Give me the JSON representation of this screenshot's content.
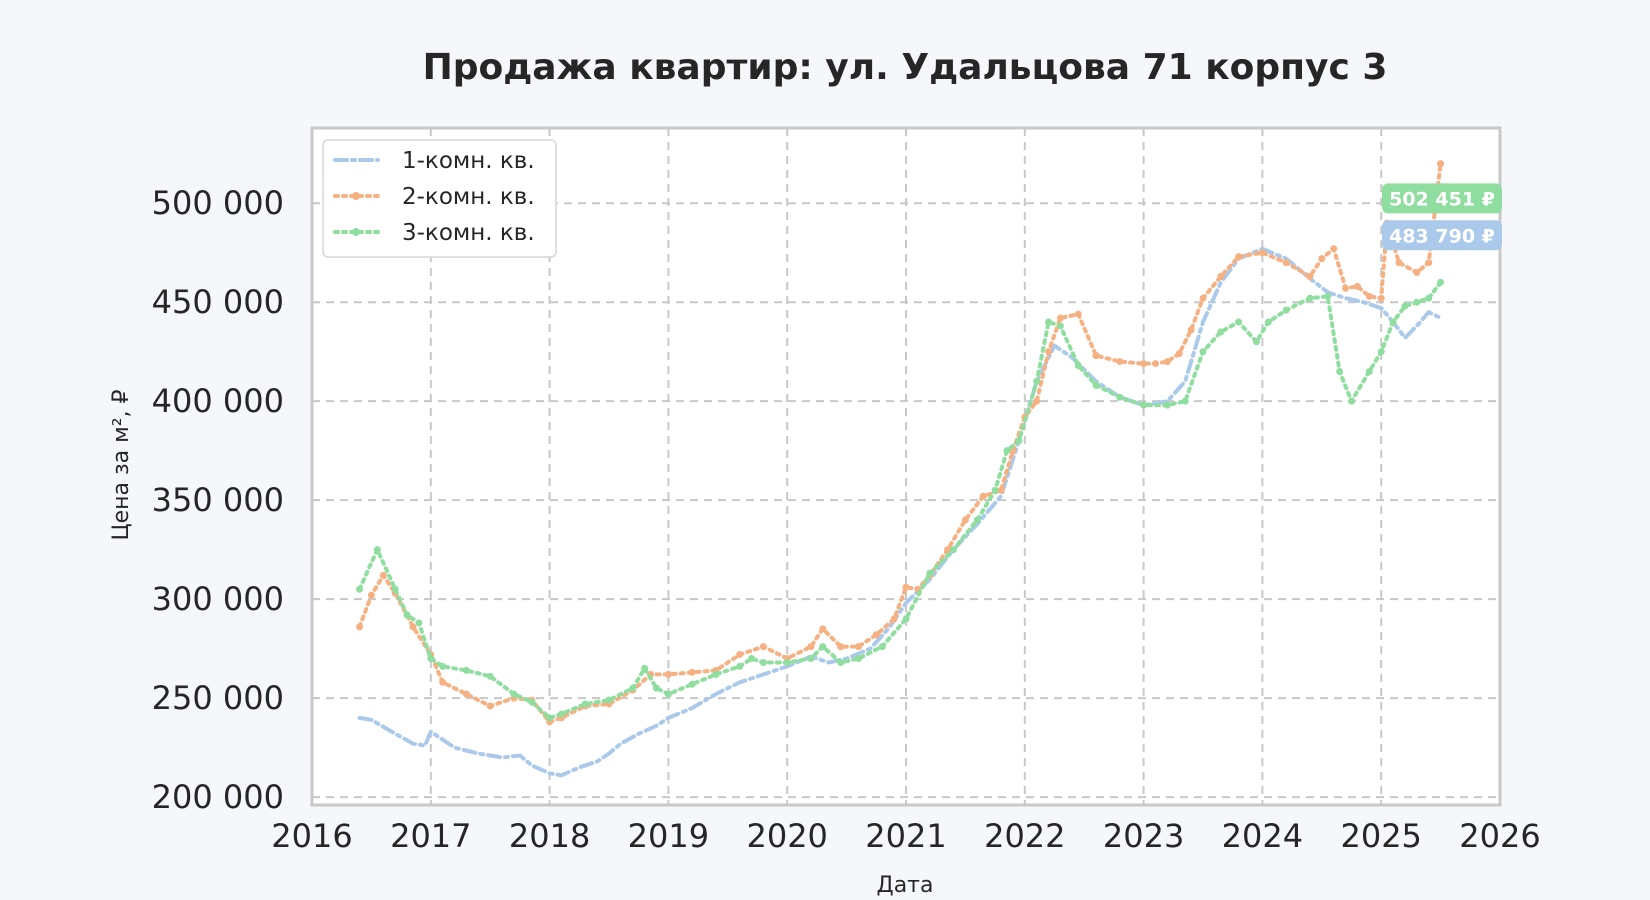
{
  "chart_data": {
    "type": "line",
    "title": "Продажа квартир: ул. Удальцова 71 корпус 3",
    "xlabel": "Дата",
    "ylabel": "Цена за м², ₽",
    "xlim": [
      2016,
      2026
    ],
    "ylim": [
      196000,
      538000
    ],
    "xticks": [
      2016,
      2017,
      2018,
      2019,
      2020,
      2021,
      2022,
      2023,
      2024,
      2025,
      2026
    ],
    "xtick_labels": [
      "2016",
      "2017",
      "2018",
      "2019",
      "2020",
      "2021",
      "2022",
      "2023",
      "2024",
      "2025",
      "2026"
    ],
    "yticks": [
      200000,
      250000,
      300000,
      350000,
      400000,
      450000,
      500000
    ],
    "ytick_labels": [
      "200 000",
      "250 000",
      "300 000",
      "350 000",
      "400 000",
      "450 000",
      "500 000"
    ],
    "grid": true,
    "legend_position": "top-left",
    "series": [
      {
        "name": "1-комн. кв.",
        "color": "#abc9ea",
        "style": "dashdot",
        "x": [
          2016.4,
          2016.5,
          2016.7,
          2016.85,
          2016.95,
          2017.0,
          2017.2,
          2017.4,
          2017.6,
          2017.75,
          2017.85,
          2018.0,
          2018.1,
          2018.25,
          2018.4,
          2018.5,
          2018.6,
          2018.75,
          2018.9,
          2019.0,
          2019.2,
          2019.4,
          2019.6,
          2019.8,
          2020.0,
          2020.2,
          2020.35,
          2020.5,
          2020.7,
          2020.85,
          2021.0,
          2021.2,
          2021.4,
          2021.6,
          2021.8,
          2021.95,
          2022.1,
          2022.25,
          2022.4,
          2022.6,
          2022.8,
          2023.0,
          2023.2,
          2023.35,
          2023.5,
          2023.65,
          2023.8,
          2024.0,
          2024.2,
          2024.4,
          2024.55,
          2024.7,
          2024.85,
          2025.0,
          2025.1,
          2025.2,
          2025.3,
          2025.4,
          2025.5
        ],
        "y": [
          240000,
          239000,
          232000,
          227000,
          226000,
          233000,
          225000,
          222000,
          220000,
          221000,
          216000,
          212000,
          211000,
          215000,
          218000,
          222000,
          227000,
          232000,
          236000,
          240000,
          245000,
          252000,
          258000,
          262000,
          266000,
          271000,
          268000,
          270000,
          275000,
          285000,
          298000,
          310000,
          325000,
          338000,
          352000,
          380000,
          410000,
          428000,
          422000,
          410000,
          402000,
          398000,
          400000,
          410000,
          440000,
          460000,
          472000,
          477000,
          472000,
          462000,
          455000,
          452000,
          450000,
          447000,
          440000,
          432000,
          438000,
          445000,
          442000
        ]
      },
      {
        "name": "2-комн. кв.",
        "color": "#f6b183",
        "style": "dotted",
        "x": [
          2016.4,
          2016.5,
          2016.6,
          2016.7,
          2016.85,
          2017.0,
          2017.1,
          2017.3,
          2017.5,
          2017.7,
          2017.85,
          2018.0,
          2018.1,
          2018.3,
          2018.5,
          2018.7,
          2018.85,
          2019.0,
          2019.2,
          2019.4,
          2019.6,
          2019.8,
          2020.0,
          2020.2,
          2020.3,
          2020.45,
          2020.6,
          2020.75,
          2020.9,
          2021.0,
          2021.1,
          2021.2,
          2021.35,
          2021.5,
          2021.65,
          2021.8,
          2021.9,
          2022.0,
          2022.1,
          2022.2,
          2022.3,
          2022.45,
          2022.6,
          2022.8,
          2023.0,
          2023.1,
          2023.2,
          2023.3,
          2023.4,
          2023.5,
          2023.65,
          2023.8,
          2024.0,
          2024.2,
          2024.4,
          2024.5,
          2024.6,
          2024.7,
          2024.8,
          2024.9,
          2025.0,
          2025.05,
          2025.15,
          2025.3,
          2025.4,
          2025.5
        ],
        "y": [
          286000,
          302000,
          312000,
          303000,
          286000,
          272000,
          258000,
          252000,
          246000,
          250000,
          249000,
          238000,
          240000,
          246000,
          247000,
          254000,
          262000,
          262000,
          263000,
          264000,
          272000,
          276000,
          270000,
          276000,
          285000,
          276000,
          276000,
          282000,
          290000,
          306000,
          305000,
          312000,
          325000,
          340000,
          352000,
          355000,
          375000,
          392000,
          400000,
          425000,
          442000,
          444000,
          423000,
          420000,
          419000,
          419000,
          420000,
          424000,
          436000,
          452000,
          463000,
          473000,
          475000,
          470000,
          463000,
          472000,
          477000,
          457000,
          458000,
          453000,
          452000,
          490000,
          470000,
          465000,
          470000,
          520000
        ]
      },
      {
        "name": "3-комн. кв.",
        "color": "#8fde9f",
        "style": "dotted",
        "x": [
          2016.4,
          2016.55,
          2016.7,
          2016.8,
          2016.9,
          2017.0,
          2017.1,
          2017.3,
          2017.5,
          2017.7,
          2017.85,
          2018.0,
          2018.1,
          2018.3,
          2018.5,
          2018.7,
          2018.8,
          2018.9,
          2019.0,
          2019.2,
          2019.4,
          2019.6,
          2019.7,
          2019.8,
          2020.0,
          2020.2,
          2020.3,
          2020.45,
          2020.6,
          2020.8,
          2021.0,
          2021.2,
          2021.4,
          2021.6,
          2021.75,
          2021.85,
          2021.95,
          2022.1,
          2022.2,
          2022.3,
          2022.45,
          2022.6,
          2022.8,
          2023.0,
          2023.2,
          2023.35,
          2023.5,
          2023.65,
          2023.8,
          2023.95,
          2024.05,
          2024.2,
          2024.4,
          2024.55,
          2024.65,
          2024.75,
          2024.9,
          2025.0,
          2025.1,
          2025.2,
          2025.3,
          2025.4,
          2025.5
        ],
        "y": [
          305000,
          325000,
          305000,
          292000,
          288000,
          270000,
          266000,
          264000,
          261000,
          252000,
          248000,
          240000,
          242000,
          247000,
          249000,
          255000,
          265000,
          255000,
          252000,
          257000,
          262000,
          266000,
          270000,
          268000,
          268000,
          270000,
          276000,
          268000,
          270000,
          276000,
          290000,
          313000,
          325000,
          340000,
          355000,
          375000,
          380000,
          410000,
          440000,
          438000,
          418000,
          408000,
          402000,
          398000,
          398000,
          400000,
          425000,
          435000,
          440000,
          430000,
          440000,
          446000,
          452000,
          453000,
          415000,
          400000,
          415000,
          425000,
          440000,
          448000,
          450000,
          452000,
          460000
        ]
      }
    ],
    "annotations": [
      {
        "text": "502 451 ₽",
        "color": "#8fde9f",
        "y": 502451
      },
      {
        "text": "483 790 ₽",
        "color": "#abc9ea",
        "y": 483790
      }
    ]
  }
}
